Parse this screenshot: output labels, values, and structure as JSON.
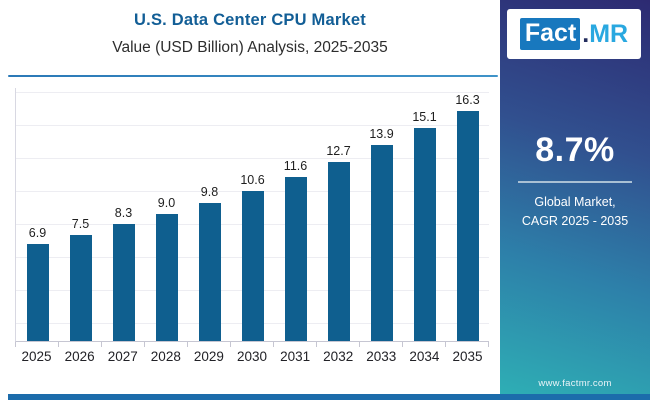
{
  "header": {
    "title": "U.S. Data Center CPU Market",
    "subtitle": "Value (USD Billion) Analysis, 2025-2035"
  },
  "chart_data": {
    "type": "bar",
    "title": "U.S. Data Center CPU Market",
    "subtitle": "Value (USD Billion) Analysis, 2025-2035",
    "categories": [
      "2025",
      "2026",
      "2027",
      "2028",
      "2029",
      "2030",
      "2031",
      "2032",
      "2033",
      "2034",
      "2035"
    ],
    "values": [
      6.9,
      7.5,
      8.3,
      9.0,
      9.8,
      10.6,
      11.6,
      12.7,
      13.9,
      15.1,
      16.3
    ],
    "value_labels": [
      "6.9",
      "7.5",
      "8.3",
      "9.0",
      "9.8",
      "10.6",
      "11.6",
      "12.7",
      "13.9",
      "15.1",
      "16.3"
    ],
    "unit": "USD Billion",
    "xlabel": "",
    "ylabel": "",
    "ylim": [
      0,
      18
    ],
    "grid": true,
    "legend_position": "none",
    "data_labels": "above-bars",
    "bar_color": "#0f5f8f"
  },
  "sidebar": {
    "logo": {
      "fact": "Fact",
      "dot": ".",
      "mr": "MR"
    },
    "cagr_value": "8.7%",
    "cagr_caption": [
      "Global Market,",
      "CAGR 2025 - 2035"
    ],
    "website": "www.factmr.com"
  },
  "colors": {
    "title_blue": "#125e96",
    "bar_blue": "#0f5f8f",
    "sidebar_gradient_top": "#2d2a72",
    "sidebar_gradient_bottom": "#2eb0b5",
    "logo_fact_bg": "#1878be",
    "logo_mr_blue": "#29a8e0",
    "accent_stripe": "#1c6cab"
  }
}
